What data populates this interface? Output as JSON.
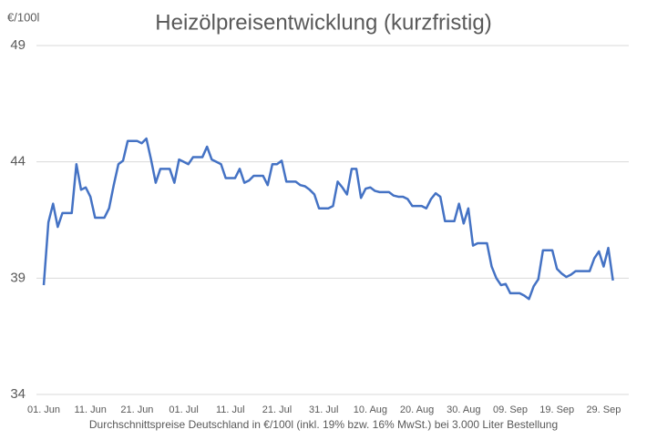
{
  "chart_data": {
    "type": "line",
    "title": "Heizölpreisentwicklung (kurzfristig)",
    "y_label": "€/100l",
    "x_label": "Durchschnittspreise Deutschland in €/100l (inkl. 19% bzw. 16% MwSt.) bei 3.000 Liter Bestellung",
    "categories": [
      "01. Jun",
      null,
      null,
      null,
      null,
      null,
      null,
      null,
      null,
      null,
      "11. Jun",
      null,
      null,
      null,
      null,
      null,
      null,
      null,
      null,
      null,
      "21. Jun",
      null,
      null,
      null,
      null,
      null,
      null,
      null,
      null,
      null,
      "01. Jul",
      null,
      null,
      null,
      null,
      null,
      null,
      null,
      null,
      null,
      "11. Jul",
      null,
      null,
      null,
      null,
      null,
      null,
      null,
      null,
      null,
      "21. Jul",
      null,
      null,
      null,
      null,
      null,
      null,
      null,
      null,
      null,
      "31. Jul",
      null,
      null,
      null,
      null,
      null,
      null,
      null,
      null,
      null,
      "10. Aug",
      null,
      null,
      null,
      null,
      null,
      null,
      null,
      null,
      null,
      "20. Aug",
      null,
      null,
      null,
      null,
      null,
      null,
      null,
      null,
      null,
      "30. Aug",
      null,
      null,
      null,
      null,
      null,
      null,
      null,
      null,
      null,
      "09. Sep",
      null,
      null,
      null,
      null,
      null,
      null,
      null,
      null,
      null,
      "19. Sep",
      null,
      null,
      null,
      null,
      null,
      null,
      null,
      null,
      null,
      "29. Sep",
      null,
      null
    ],
    "series": [
      {
        "name": "Heizölpreis",
        "color": "#4472c4",
        "values": [
          38.7,
          41.4,
          42.2,
          41.2,
          41.8,
          41.8,
          41.8,
          43.9,
          42.8,
          42.9,
          42.5,
          41.6,
          41.6,
          41.6,
          42.0,
          43.0,
          43.9,
          44.05,
          44.9,
          44.9,
          44.9,
          44.8,
          45.0,
          44.1,
          43.1,
          43.7,
          43.7,
          43.7,
          43.1,
          44.1,
          44.0,
          43.9,
          44.2,
          44.2,
          44.2,
          44.65,
          44.1,
          44.0,
          43.9,
          43.3,
          43.3,
          43.3,
          43.7,
          43.1,
          43.2,
          43.4,
          43.4,
          43.4,
          43.0,
          43.9,
          43.9,
          44.05,
          43.15,
          43.15,
          43.15,
          43.0,
          42.95,
          42.8,
          42.6,
          42.0,
          42.0,
          42.0,
          42.1,
          43.15,
          42.9,
          42.6,
          43.7,
          43.7,
          42.45,
          42.85,
          42.9,
          42.75,
          42.7,
          42.7,
          42.7,
          42.55,
          42.5,
          42.5,
          42.4,
          42.1,
          42.1,
          42.1,
          42.0,
          42.4,
          42.65,
          42.5,
          41.45,
          41.45,
          41.45,
          42.2,
          41.35,
          42.0,
          40.4,
          40.5,
          40.5,
          40.5,
          39.5,
          39.0,
          38.7,
          38.75,
          38.35,
          38.35,
          38.35,
          38.25,
          38.1,
          38.65,
          38.95,
          40.2,
          40.2,
          40.2,
          39.4,
          39.2,
          39.05,
          39.15,
          39.3,
          39.3,
          39.3,
          39.3,
          39.85,
          40.15,
          39.5,
          40.3,
          38.9
        ]
      }
    ],
    "ylim": [
      34,
      49
    ],
    "yticks": [
      34,
      39,
      44,
      49
    ],
    "grid": true
  }
}
